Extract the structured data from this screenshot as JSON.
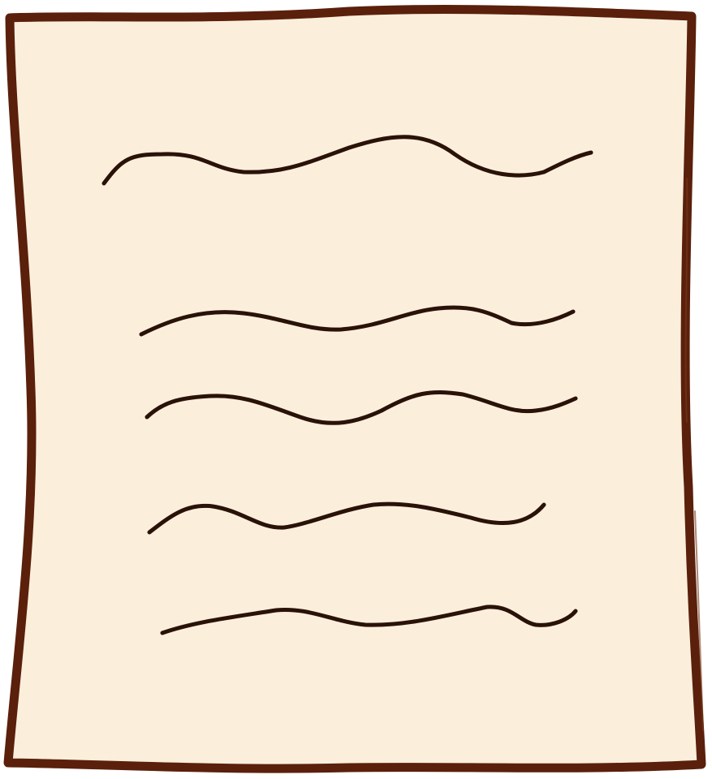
{
  "illustration": {
    "subject": "document-icon",
    "colors": {
      "paper_fill": "#FBEFDC",
      "paper_outline": "#5A200B",
      "text_lines": "#2A1208"
    },
    "placeholder_line_count": 5
  }
}
